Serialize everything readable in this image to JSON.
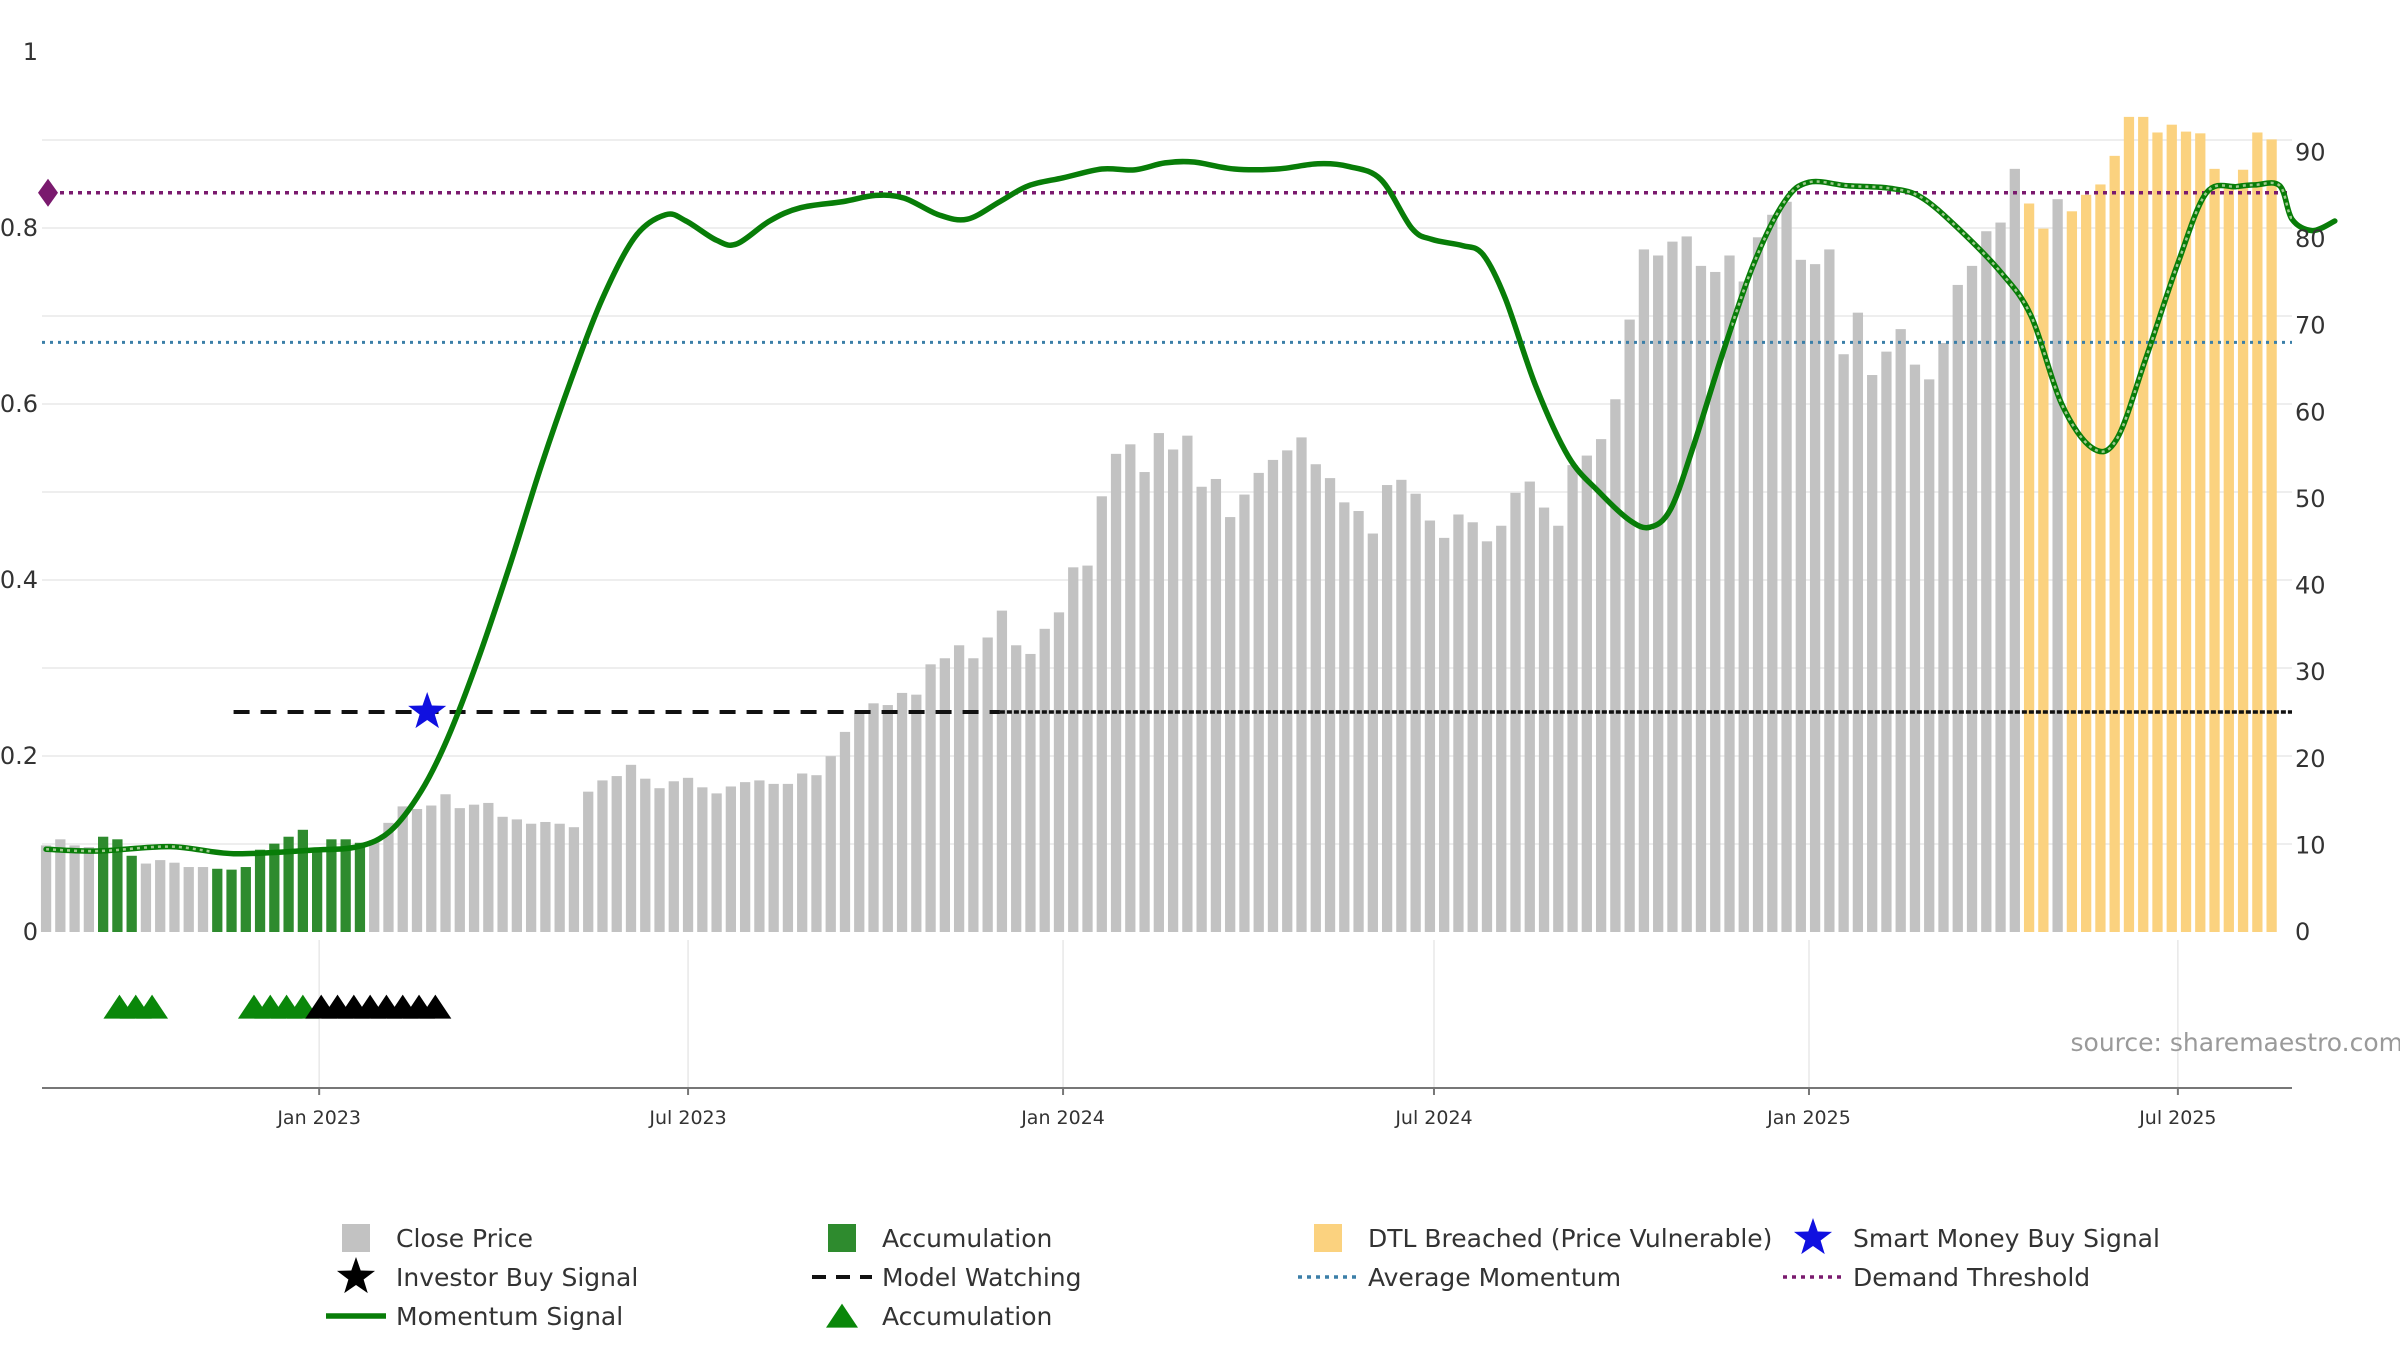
{
  "source_text": "source: sharemaestro.com",
  "colors": {
    "close": "#c2c2c2",
    "accumulation_bar": "#2e8b2e",
    "dtl": "#fbd27f",
    "momentum": "#087d08",
    "avg_momentum": "#3b7fa8",
    "demand": "#7a1a6e",
    "model_watching": "#111111",
    "smart_money": "#1010e0",
    "investor": "#000000",
    "accum_marker": "#0a870a",
    "grid": "#e8e8e8"
  },
  "chart_data": {
    "type": "bar",
    "title": "",
    "left_axis": {
      "range": [
        0,
        1
      ],
      "ticks": [
        "0",
        "0.2",
        "0.4",
        "0.6",
        "0.8",
        "1"
      ]
    },
    "right_axis": {
      "range": [
        0,
        100
      ],
      "ticks": [
        "0",
        "10",
        "20",
        "30",
        "40",
        "50",
        "60",
        "70",
        "80",
        "90"
      ]
    },
    "x_range": [
      "2022-08-18",
      "2025-08-26"
    ],
    "date_ticks": [
      {
        "date": "2023-01-01",
        "label": "Jan 2023"
      },
      {
        "date": "2023-07-01",
        "label": "Jul 2023"
      },
      {
        "date": "2024-01-01",
        "label": "Jan 2024"
      },
      {
        "date": "2024-07-01",
        "label": "Jul 2024"
      },
      {
        "date": "2025-01-01",
        "label": "Jan 2025"
      },
      {
        "date": "2025-07-01",
        "label": "Jul 2025"
      }
    ],
    "bars_start": "2022-08-20",
    "bar_interval_days": 7,
    "close_price": [
      10.0,
      10.7,
      10.0,
      9.8,
      11.0,
      10.7,
      8.8,
      7.9,
      8.3,
      8.0,
      7.5,
      7.5,
      7.3,
      7.2,
      7.5,
      9.5,
      10.2,
      11.0,
      11.8,
      9.7,
      10.7,
      10.7,
      10.3,
      10.6,
      12.6,
      14.5,
      14.2,
      14.6,
      15.9,
      14.3,
      14.7,
      14.9,
      13.3,
      13.0,
      12.5,
      12.7,
      12.5,
      12.1,
      16.2,
      17.5,
      18.0,
      19.3,
      17.7,
      16.6,
      17.4,
      17.8,
      16.7,
      16.0,
      16.8,
      17.3,
      17.5,
      17.1,
      17.1,
      18.3,
      18.1,
      20.3,
      23.1,
      25.3,
      26.4,
      26.2,
      27.6,
      27.4,
      30.9,
      31.6,
      33.1,
      31.6,
      34.0,
      37.1,
      33.1,
      32.1,
      35.0,
      36.9,
      42.1,
      42.3,
      50.3,
      55.2,
      56.3,
      53.1,
      57.6,
      55.7,
      57.3,
      51.4,
      52.3,
      47.9,
      50.5,
      53.0,
      54.5,
      55.6,
      57.1,
      54.0,
      52.4,
      49.6,
      48.6,
      46.0,
      51.6,
      52.2,
      50.6,
      47.5,
      45.5,
      48.2,
      47.3,
      45.1,
      46.9,
      50.7,
      52.0,
      49.0,
      46.9,
      53.9,
      55.0,
      56.9,
      61.5,
      70.7,
      78.8,
      78.1,
      79.7,
      80.3,
      76.9,
      76.2,
      78.1,
      75.1,
      80.2,
      82.8,
      84.3,
      77.6,
      77.1,
      78.8,
      66.7,
      71.5,
      64.3,
      67.0,
      69.6,
      65.5,
      63.8,
      68.0,
      74.7,
      76.9,
      80.9,
      81.9,
      88.1,
      84.1,
      81.2,
      84.6,
      83.2,
      85.1,
      86.3,
      89.6,
      94.1,
      94.1,
      92.3,
      93.2,
      92.4,
      92.2,
      88.1,
      86.3,
      88.0,
      92.3,
      91.5
    ],
    "accumulation_bar_indices": [
      4,
      5,
      6,
      12,
      13,
      14,
      15,
      16,
      17,
      18,
      19,
      20,
      21,
      22
    ],
    "dtl_start_index": 139,
    "dtl_exclude_indices": [
      141
    ],
    "momentum_signal": [
      [
        "2022-08-20",
        0.094
      ],
      [
        "2022-09-15",
        0.092
      ],
      [
        "2022-10-20",
        0.097
      ],
      [
        "2022-11-20",
        0.089
      ],
      [
        "2022-12-28",
        0.093
      ],
      [
        "2023-01-20",
        0.097
      ],
      [
        "2023-02-05",
        0.115
      ],
      [
        "2023-02-20",
        0.16
      ],
      [
        "2023-03-05",
        0.22
      ],
      [
        "2023-03-20",
        0.31
      ],
      [
        "2023-04-05",
        0.42
      ],
      [
        "2023-04-20",
        0.53
      ],
      [
        "2023-05-05",
        0.63
      ],
      [
        "2023-05-20",
        0.72
      ],
      [
        "2023-06-05",
        0.79
      ],
      [
        "2023-06-20",
        0.815
      ],
      [
        "2023-06-30",
        0.808
      ],
      [
        "2023-07-15",
        0.786
      ],
      [
        "2023-07-25",
        0.782
      ],
      [
        "2023-08-10",
        0.808
      ],
      [
        "2023-08-25",
        0.823
      ],
      [
        "2023-09-15",
        0.83
      ],
      [
        "2023-10-01",
        0.837
      ],
      [
        "2023-10-15",
        0.834
      ],
      [
        "2023-11-01",
        0.815
      ],
      [
        "2023-11-15",
        0.81
      ],
      [
        "2023-12-01",
        0.83
      ],
      [
        "2023-12-15",
        0.848
      ],
      [
        "2024-01-01",
        0.857
      ],
      [
        "2024-01-20",
        0.867
      ],
      [
        "2024-02-05",
        0.866
      ],
      [
        "2024-02-20",
        0.874
      ],
      [
        "2024-03-05",
        0.875
      ],
      [
        "2024-03-25",
        0.867
      ],
      [
        "2024-04-15",
        0.867
      ],
      [
        "2024-05-05",
        0.873
      ],
      [
        "2024-05-20",
        0.87
      ],
      [
        "2024-06-05",
        0.855
      ],
      [
        "2024-06-20",
        0.8
      ],
      [
        "2024-06-30",
        0.787
      ],
      [
        "2024-07-15",
        0.78
      ],
      [
        "2024-07-25",
        0.77
      ],
      [
        "2024-08-05",
        0.72
      ],
      [
        "2024-08-20",
        0.62
      ],
      [
        "2024-09-05",
        0.54
      ],
      [
        "2024-09-20",
        0.5
      ],
      [
        "2024-10-05",
        0.468
      ],
      [
        "2024-10-15",
        0.46
      ],
      [
        "2024-10-25",
        0.48
      ],
      [
        "2024-11-05",
        0.55
      ],
      [
        "2024-11-20",
        0.66
      ],
      [
        "2024-12-05",
        0.76
      ],
      [
        "2024-12-20",
        0.83
      ],
      [
        "2025-01-01",
        0.852
      ],
      [
        "2025-01-20",
        0.848
      ],
      [
        "2025-02-10",
        0.845
      ],
      [
        "2025-02-25",
        0.835
      ],
      [
        "2025-03-15",
        0.8
      ],
      [
        "2025-04-05",
        0.75
      ],
      [
        "2025-04-20",
        0.7
      ],
      [
        "2025-05-05",
        0.6
      ],
      [
        "2025-05-20",
        0.55
      ],
      [
        "2025-06-01",
        0.56
      ],
      [
        "2025-06-15",
        0.65
      ],
      [
        "2025-07-01",
        0.76
      ],
      [
        "2025-07-15",
        0.84
      ],
      [
        "2025-07-30",
        0.847
      ],
      [
        "2025-08-08",
        0.849
      ],
      [
        "2025-08-20",
        0.848
      ],
      [
        "2025-08-26",
        0.81
      ],
      [
        "2025-09-05",
        0.797
      ],
      [
        "2025-09-16",
        0.808
      ]
    ],
    "momentum_faded_ranges": [
      [
        "2022-08-20",
        "2022-11-10"
      ],
      [
        "2024-11-24",
        "2025-08-26"
      ]
    ],
    "average_momentum": 0.67,
    "demand_threshold": 0.84,
    "model_watching": {
      "value": 0.25,
      "start": "2022-11-20",
      "dashed_until": "2023-12-01"
    },
    "smart_money_buy_signal": {
      "date": "2023-02-23",
      "value": 0.25
    },
    "accumulation_markers": [
      "2022-09-25",
      "2022-10-03",
      "2022-10-11",
      "2022-11-30",
      "2022-12-08",
      "2022-12-16",
      "2022-12-24"
    ],
    "investor_markers": [
      "2023-01-02",
      "2023-01-10",
      "2023-01-18",
      "2023-01-26",
      "2023-02-03",
      "2023-02-11",
      "2023-02-19",
      "2023-02-27"
    ],
    "legend": [
      {
        "label": "Close Price",
        "symbol": "square",
        "color": "#c2c2c2"
      },
      {
        "label": "Accumulation",
        "symbol": "square",
        "color": "#2e8b2e"
      },
      {
        "label": "DTL Breached (Price Vulnerable)",
        "symbol": "square",
        "color": "#fbd27f"
      },
      {
        "label": "Smart Money Buy Signal",
        "symbol": "star",
        "color": "#1010e0"
      },
      {
        "label": "Investor Buy Signal",
        "symbol": "star",
        "color": "#000000"
      },
      {
        "label": "Model Watching",
        "symbol": "dash",
        "color": "#111111"
      },
      {
        "label": "Average Momentum",
        "symbol": "dot",
        "color": "#3b7fa8"
      },
      {
        "label": "Demand Threshold",
        "symbol": "dot",
        "color": "#7a1a6e"
      },
      {
        "label": "Momentum Signal",
        "symbol": "line",
        "color": "#087d08"
      },
      {
        "label": "Accumulation",
        "symbol": "triangle",
        "color": "#0a870a"
      }
    ]
  }
}
